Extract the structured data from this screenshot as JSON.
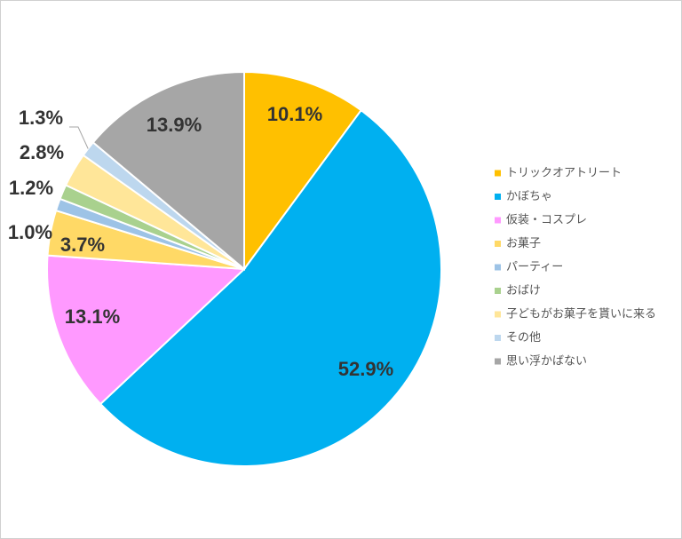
{
  "chart_data": {
    "type": "pie",
    "title": "",
    "legend_position": "right",
    "slices": [
      {
        "label": "トリックオアトリート",
        "value": 10.1,
        "display": "10.1%",
        "color": "#FFC000"
      },
      {
        "label": "かぼちゃ",
        "value": 52.9,
        "display": "52.9%",
        "color": "#00B0F0"
      },
      {
        "label": "仮装・コスプレ",
        "value": 13.1,
        "display": "13.1%",
        "color": "#FF99FF"
      },
      {
        "label": "お菓子",
        "value": 3.7,
        "display": "3.7%",
        "color": "#FFD966"
      },
      {
        "label": "パーティー",
        "value": 1.0,
        "display": "1.0%",
        "color": "#9DC3E6"
      },
      {
        "label": "おばけ",
        "value": 1.2,
        "display": "1.2%",
        "color": "#A9D18E"
      },
      {
        "label": "子どもがお菓子を貰いに来る",
        "value": 2.8,
        "display": "2.8%",
        "color": "#FFE699"
      },
      {
        "label": "その他",
        "value": 1.3,
        "display": "1.3%",
        "color": "#BDD7EE"
      },
      {
        "label": "思い浮かばない",
        "value": 13.9,
        "display": "13.9%",
        "color": "#A6A6A6"
      }
    ]
  }
}
